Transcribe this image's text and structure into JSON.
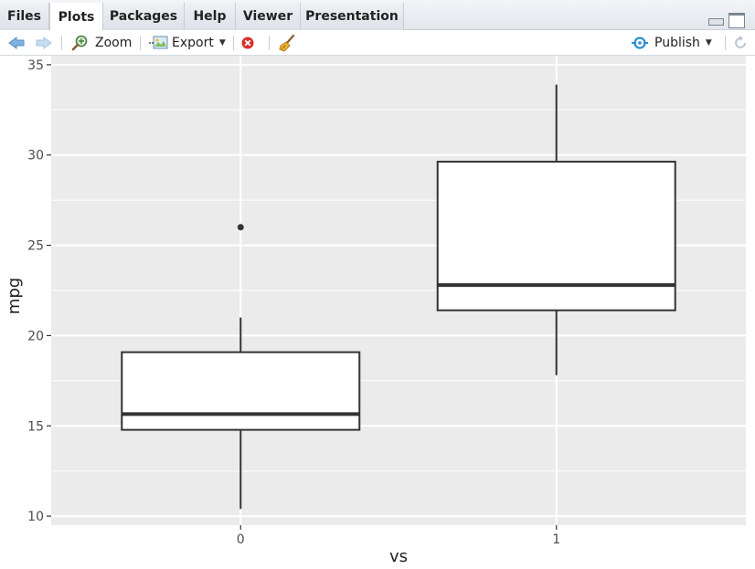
{
  "tabs": [
    {
      "label": "Files",
      "active": false
    },
    {
      "label": "Plots",
      "active": true
    },
    {
      "label": "Packages",
      "active": false
    },
    {
      "label": "Help",
      "active": false
    },
    {
      "label": "Viewer",
      "active": false
    },
    {
      "label": "Presentation",
      "active": false
    }
  ],
  "toolbar": {
    "back_icon": "arrow-left-icon",
    "forward_icon": "arrow-right-icon",
    "zoom_label": "Zoom",
    "export_label": "Export",
    "remove_icon": "remove-plot-icon",
    "clear_icon": "broom-icon",
    "publish_label": "Publish",
    "refresh_icon": "refresh-icon"
  },
  "colors": {
    "panel_bg": "#ebebeb",
    "grid": "#ffffff",
    "box_fill": "#ffffff",
    "box_stroke": "#333333",
    "publish_accent": "#2b8fcf"
  },
  "chart_data": {
    "type": "boxplot",
    "title": "",
    "xlabel": "vs",
    "ylabel": "mpg",
    "categories": [
      "0",
      "1"
    ],
    "ylim": [
      9.5,
      35.5
    ],
    "yticks": [
      10,
      15,
      20,
      25,
      30,
      35
    ],
    "grid": true,
    "boxes": [
      {
        "category": "0",
        "whisker_low": 10.4,
        "q1": 14.78,
        "median": 15.65,
        "q3": 19.08,
        "whisker_high": 21.0,
        "outliers": [
          26.0
        ]
      },
      {
        "category": "1",
        "whisker_low": 17.8,
        "q1": 21.4,
        "median": 22.8,
        "q3": 29.63,
        "whisker_high": 33.9,
        "outliers": []
      }
    ]
  }
}
